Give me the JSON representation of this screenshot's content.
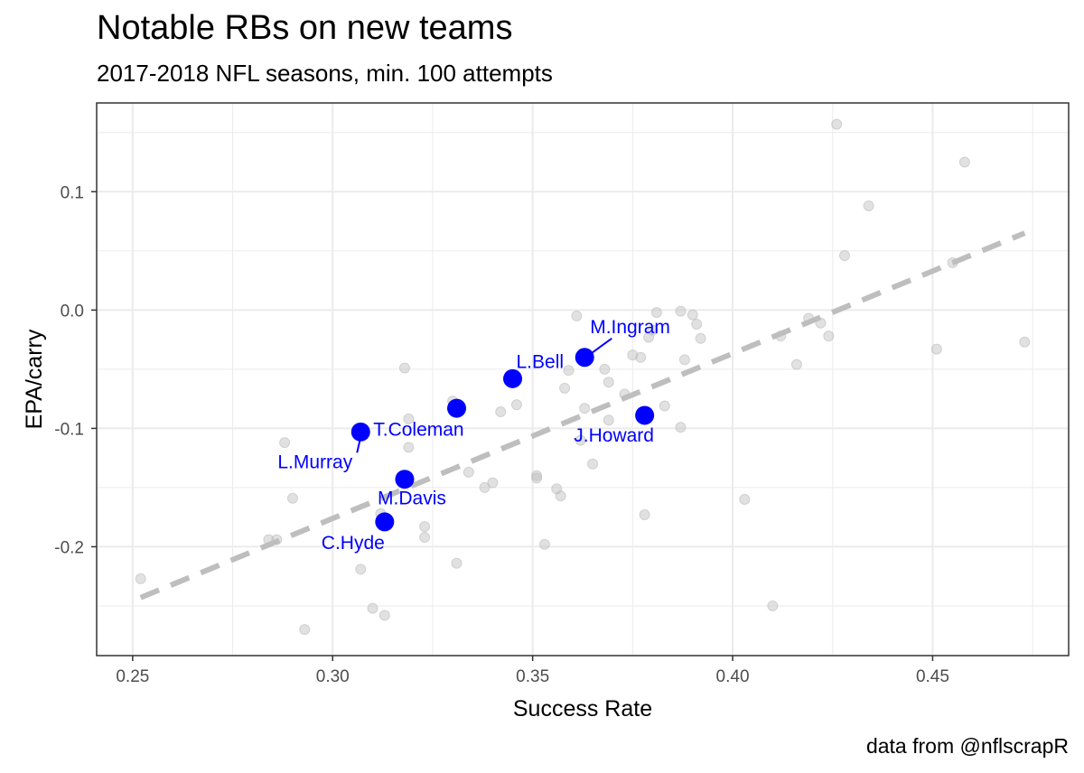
{
  "title": "Notable RBs on new teams",
  "subtitle": "2017-2018 NFL seasons, min. 100 attempts",
  "caption": "data from @nflscrapR",
  "chart_data": {
    "type": "scatter",
    "xlabel": "Success Rate",
    "ylabel": "EPA/carry",
    "xlim": [
      0.241,
      0.484
    ],
    "ylim": [
      -0.292,
      0.175
    ],
    "x_ticks": [
      0.25,
      0.3,
      0.35,
      0.4,
      0.45
    ],
    "x_tick_labels": [
      "0.25",
      "0.30",
      "0.35",
      "0.40",
      "0.45"
    ],
    "y_ticks": [
      -0.2,
      -0.1,
      0.0,
      0.1
    ],
    "y_tick_labels": [
      "-0.2",
      "-0.1",
      "0.0",
      "0.1"
    ],
    "grid": true,
    "colors": {
      "highlight": "#0000ff",
      "background_points": "#bdbdbd",
      "trend": "#bebebe",
      "grid": "#ebebeb"
    },
    "trend_line": {
      "style": "dashed",
      "x": [
        0.252,
        0.473
      ],
      "y": [
        -0.243,
        0.065
      ]
    },
    "highlighted": [
      {
        "label": "M.Ingram",
        "x": 0.363,
        "y": -0.04
      },
      {
        "label": "L.Bell",
        "x": 0.345,
        "y": -0.058
      },
      {
        "label": "T.Coleman",
        "x": 0.331,
        "y": -0.083
      },
      {
        "label": "L.Murray",
        "x": 0.307,
        "y": -0.103
      },
      {
        "label": "J.Howard",
        "x": 0.378,
        "y": -0.089
      },
      {
        "label": "M.Davis",
        "x": 0.318,
        "y": -0.143
      },
      {
        "label": "C.Hyde",
        "x": 0.313,
        "y": -0.179
      }
    ],
    "points": [
      [
        0.252,
        -0.227
      ],
      [
        0.284,
        -0.194
      ],
      [
        0.286,
        -0.194
      ],
      [
        0.288,
        -0.112
      ],
      [
        0.29,
        -0.159
      ],
      [
        0.293,
        -0.27
      ],
      [
        0.307,
        -0.219
      ],
      [
        0.31,
        -0.252
      ],
      [
        0.313,
        -0.258
      ],
      [
        0.312,
        -0.172
      ],
      [
        0.318,
        -0.049
      ],
      [
        0.319,
        -0.116
      ],
      [
        0.319,
        -0.092
      ],
      [
        0.323,
        -0.183
      ],
      [
        0.323,
        -0.192
      ],
      [
        0.33,
        -0.077
      ],
      [
        0.331,
        -0.214
      ],
      [
        0.334,
        -0.137
      ],
      [
        0.338,
        -0.15
      ],
      [
        0.34,
        -0.146
      ],
      [
        0.342,
        -0.086
      ],
      [
        0.346,
        -0.08
      ],
      [
        0.351,
        -0.14
      ],
      [
        0.351,
        -0.142
      ],
      [
        0.353,
        -0.198
      ],
      [
        0.356,
        -0.151
      ],
      [
        0.357,
        -0.157
      ],
      [
        0.358,
        -0.066
      ],
      [
        0.359,
        -0.051
      ],
      [
        0.361,
        -0.005
      ],
      [
        0.362,
        -0.11
      ],
      [
        0.363,
        -0.083
      ],
      [
        0.365,
        -0.13
      ],
      [
        0.368,
        -0.05
      ],
      [
        0.369,
        -0.061
      ],
      [
        0.369,
        -0.093
      ],
      [
        0.373,
        -0.071
      ],
      [
        0.375,
        -0.038
      ],
      [
        0.377,
        -0.04
      ],
      [
        0.378,
        -0.173
      ],
      [
        0.379,
        -0.023
      ],
      [
        0.38,
        -0.017
      ],
      [
        0.381,
        -0.002
      ],
      [
        0.383,
        -0.081
      ],
      [
        0.387,
        -0.001
      ],
      [
        0.387,
        -0.099
      ],
      [
        0.388,
        -0.042
      ],
      [
        0.39,
        -0.004
      ],
      [
        0.391,
        -0.012
      ],
      [
        0.392,
        -0.024
      ],
      [
        0.403,
        -0.16
      ],
      [
        0.41,
        -0.25
      ],
      [
        0.412,
        -0.022
      ],
      [
        0.416,
        -0.046
      ],
      [
        0.419,
        -0.007
      ],
      [
        0.422,
        -0.011
      ],
      [
        0.424,
        -0.022
      ],
      [
        0.426,
        0.157
      ],
      [
        0.428,
        0.046
      ],
      [
        0.434,
        0.088
      ],
      [
        0.451,
        -0.033
      ],
      [
        0.455,
        0.04
      ],
      [
        0.458,
        0.125
      ],
      [
        0.473,
        -0.027
      ]
    ]
  }
}
